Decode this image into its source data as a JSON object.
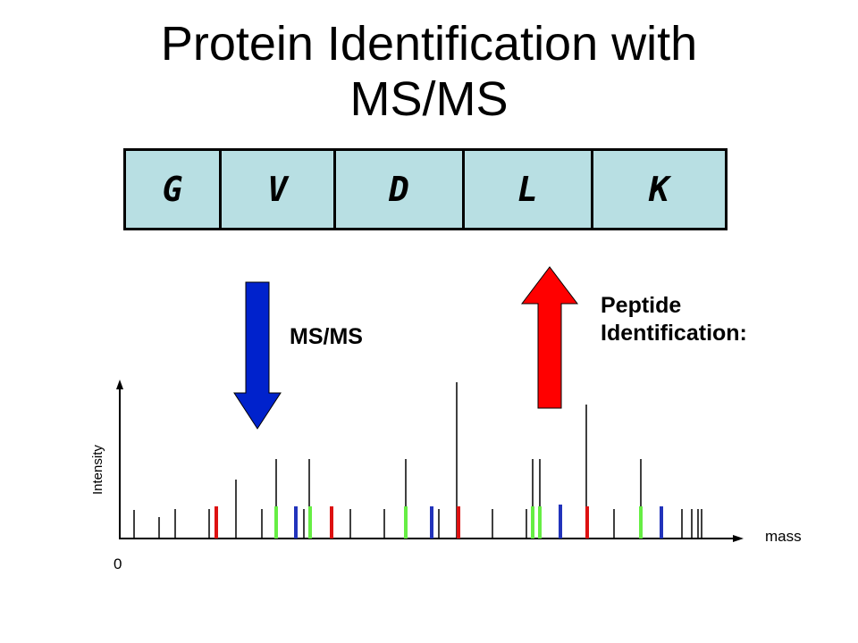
{
  "title": {
    "line1": "Protein Identification with",
    "line2": "MS/MS"
  },
  "sequence": {
    "residues": [
      "G",
      "V",
      "D",
      "L",
      "K"
    ],
    "fill_color": "#b8dfe3"
  },
  "arrows": {
    "msms": {
      "label": "MS/MS",
      "direction": "down",
      "color": "#0022cc"
    },
    "peptide_id": {
      "label_line1": "Peptide",
      "label_line2": "Identification:",
      "direction": "up",
      "color": "#ff0000"
    }
  },
  "spectrum": {
    "y_label": "Intensity",
    "x_label": "mass",
    "origin_label": "0",
    "colors": {
      "black": "#000000",
      "red": "#dd1111",
      "green": "#66ee44",
      "blue": "#2233bb"
    }
  }
}
